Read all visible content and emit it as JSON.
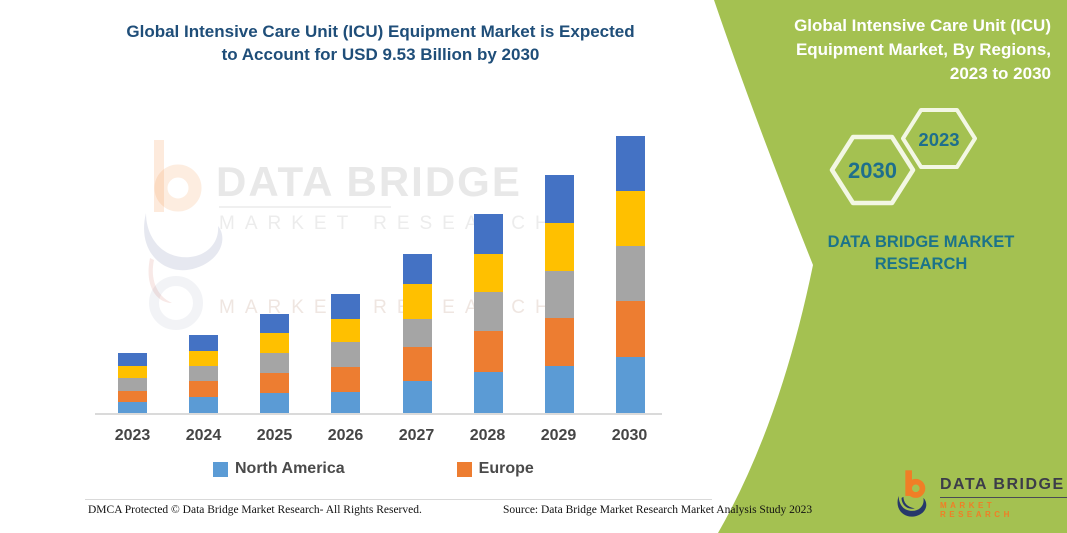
{
  "chart": {
    "title_lines": [
      "Global Intensive Care Unit (ICU) Equipment Market is Expected",
      "to Account for USD 9.53 Billion by 2030"
    ],
    "footer_left": "DMCA Protected © Data Bridge Market Research-  All Rights Reserved.",
    "footer_right": "Source: Data Bridge Market Research  Market Analysis Study 2023"
  },
  "chart_data": {
    "type": "bar",
    "stacked": true,
    "title": "Global Intensive Care Unit (ICU) Equipment Market is Expected to Account for USD 9.53 Billion by 2030",
    "unit": "USD Billion",
    "categories": [
      "2023",
      "2024",
      "2025",
      "2026",
      "2027",
      "2028",
      "2029",
      "2030"
    ],
    "series": [
      {
        "name": "North America",
        "color": "#5B9BD5",
        "in_legend": true,
        "values": [
          0.41,
          0.58,
          0.72,
          0.75,
          1.13,
          1.44,
          1.65,
          1.95
        ]
      },
      {
        "name": "Europe",
        "color": "#ED7D31",
        "in_legend": true,
        "values": [
          0.38,
          0.55,
          0.69,
          0.86,
          1.17,
          1.41,
          1.65,
          1.92
        ]
      },
      {
        "name": "",
        "color": "#A5A5A5",
        "in_legend": false,
        "values": [
          0.45,
          0.51,
          0.69,
          0.86,
          0.96,
          1.34,
          1.61,
          1.89
        ]
      },
      {
        "name": "",
        "color": "#FFC000",
        "in_legend": false,
        "values": [
          0.41,
          0.51,
          0.69,
          0.79,
          1.2,
          1.3,
          1.65,
          1.89
        ]
      },
      {
        "name": "",
        "color": "#4472C4",
        "in_legend": false,
        "values": [
          0.45,
          0.55,
          0.65,
          0.86,
          1.03,
          1.37,
          1.65,
          1.88
        ]
      }
    ],
    "totals": [
      2.1,
      2.7,
      3.44,
      4.12,
      5.49,
      6.86,
      8.21,
      9.53
    ],
    "ylim": [
      0,
      9.53
    ],
    "legend_position": "bottom",
    "legend_visible": [
      "North America",
      "Europe"
    ],
    "grid": false,
    "y_axis_shown": false
  },
  "watermark": {
    "line1": "DATA BRIDGE",
    "line2": "MARKET RESEARCH",
    "line3": "MARKET RESEARCH"
  },
  "panel": {
    "title_lines": [
      "Global Intensive Care Unit (ICU)",
      "Equipment Market, By Regions,",
      "2023 to 2030"
    ],
    "hex_large": "2030",
    "hex_small": "2023",
    "brand_lines": [
      "DATA BRIDGE MARKET",
      "RESEARCH"
    ],
    "logo_name": "DATA BRIDGE",
    "logo_sub": "MARKET RESEARCH"
  },
  "colors": {
    "panel_green": "#A4C151",
    "title_navy": "#1F4E79",
    "panel_teal": "#1C7389",
    "hex_year_text": "#1E6F8C",
    "hex_stroke": "#F3F7E4",
    "axis_line": "#DADADA",
    "axis_label": "#454545",
    "logo_navy": "#27386B",
    "logo_orange": "#F07E26"
  }
}
